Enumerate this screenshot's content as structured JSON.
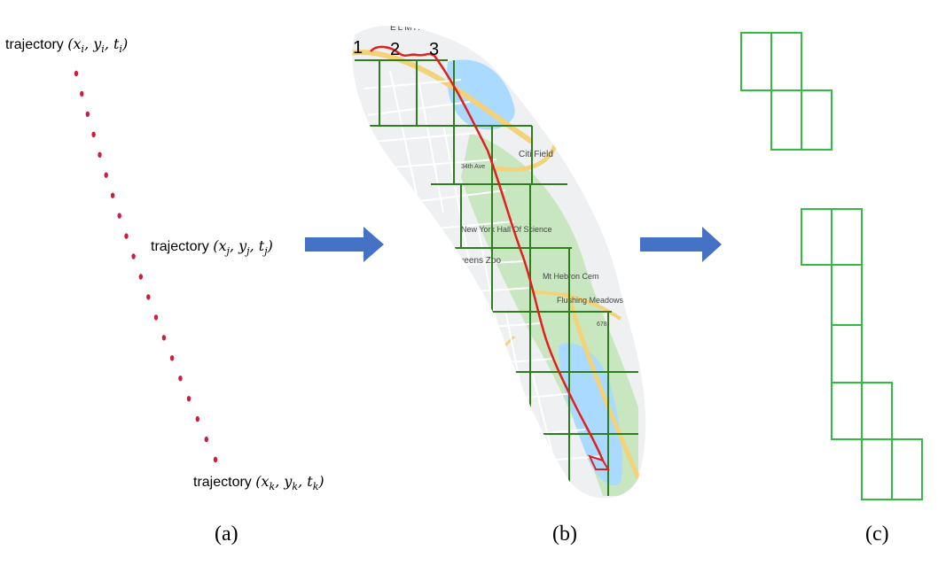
{
  "panel_a": {
    "labels": {
      "i": {
        "word": "trajectory",
        "math": "(x_i, y_i, t_i)"
      },
      "j": {
        "word": "trajectory",
        "math": "(x_j, y_j, t_j)"
      },
      "k": {
        "word": "trajectory",
        "math": "(x_k, y_k, t_k)"
      }
    },
    "point_color": "#d01c3a",
    "point_count": 20
  },
  "panel_b": {
    "path_markers": [
      "1",
      "2",
      "3"
    ],
    "route_color": "#e0201c",
    "grid_color": "#2e7d1e",
    "map_labels": {
      "citi_field": "Citi Field",
      "science": "New York Hall Of Science",
      "zoo": "Queens Zoo",
      "hebron": "Mt Hebron Cem",
      "flushing": "Flushing Meadows Corona Park",
      "elmhurst": "ELMHURST",
      "ave34": "34th Ave",
      "exit678": "678"
    }
  },
  "panel_c": {
    "cell_color": "#33bb44",
    "cell_count": 12
  },
  "arrows": {
    "color": "#4472c4"
  },
  "captions": {
    "a": "(a)",
    "b": "(b)",
    "c": "(c)"
  }
}
